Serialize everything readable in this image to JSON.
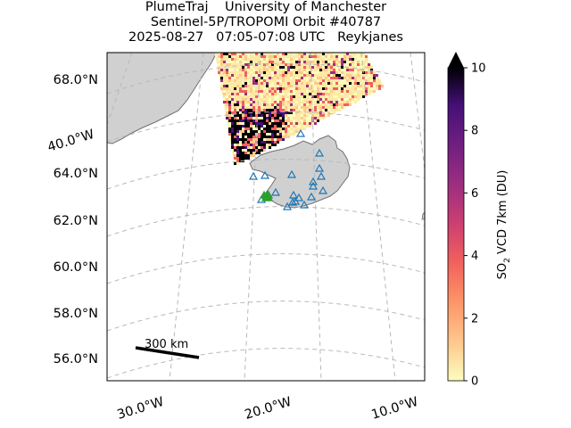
{
  "title": {
    "line1": "PlumeTraj    University of Manchester",
    "line2": "Sentinel-5P/TROPOMI Orbit #40787",
    "line3": "2025-08-27   07:05-07:08 UTC   Reykjanes"
  },
  "map": {
    "lat_labels": [
      "68.0°N",
      "64.0°N",
      "62.0°N",
      "60.0°N",
      "58.0°N",
      "56.0°N"
    ],
    "lon_labels_left": [
      "40.0°W"
    ],
    "lon_labels_bottom": [
      "30.0°W",
      "20.0°W",
      "10.0°W"
    ],
    "scale_bar_label": "300 km",
    "colors": {
      "land": "#d0d0d0",
      "coast": "#707070",
      "grid": "#b8b8b8",
      "volcano_markers": "#1f77b4",
      "active_volcano": "#2ca02c",
      "scale_bar": "#000000"
    }
  },
  "colorbar": {
    "label_prefix": "SO",
    "label_sub": "2",
    "label_suffix": " VCD 7km (DU)",
    "ticks": [
      "0",
      "2",
      "4",
      "6",
      "8",
      "10"
    ],
    "min": 0,
    "max": 10,
    "colormap": "magma_r"
  }
}
